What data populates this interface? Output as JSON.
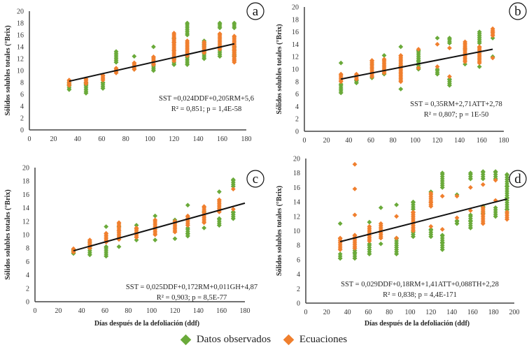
{
  "colors": {
    "observed": "#6aaa3a",
    "equation": "#f07f2e",
    "trend": "#111111",
    "axis": "#444444"
  },
  "legend": [
    {
      "key": "observed",
      "label": "Datos observados"
    },
    {
      "key": "equation",
      "label": "Ecuaciones"
    }
  ],
  "chart_data": [
    {
      "type": "scatter",
      "panel": "a",
      "ylabel": "Sólidos solubles totales (°Brix)",
      "xlabel": "",
      "xlim": [
        0,
        180
      ],
      "xticks": [
        0,
        20,
        40,
        60,
        80,
        100,
        120,
        140,
        160,
        180
      ],
      "ylim": [
        0,
        20
      ],
      "yticks": [
        0,
        2,
        4,
        6,
        8,
        10,
        12,
        14,
        16,
        18,
        20
      ],
      "equation": "SST =0,024DDF+0,205RM+5,6",
      "stats": "R² = 0,851; p = 1,4E-58",
      "trendline": {
        "x": [
          33,
          170
        ],
        "y": [
          8.2,
          14.5
        ]
      },
      "groups": [
        {
          "x": 33,
          "observed": [
            6.8,
            7.6,
            8.0
          ],
          "equation": [
            7.5,
            8.4
          ]
        },
        {
          "x": 47,
          "observed": [
            6.2,
            7.6,
            8.0
          ],
          "equation": [
            7.8,
            8.6
          ]
        },
        {
          "x": 61,
          "observed": [
            7.0,
            8.0
          ],
          "equation": [
            8.4,
            9.2
          ]
        },
        {
          "x": 72,
          "observed": [
            11.4,
            13.2
          ],
          "equation": [
            9.6,
            10.4
          ]
        },
        {
          "x": 87,
          "observed": [
            10.2,
            12.4
          ],
          "equation": [
            10.2,
            11.3
          ]
        },
        {
          "x": 103,
          "observed": [
            10.0,
            11.0,
            14.0
          ],
          "equation": [
            11.0,
            12.3
          ]
        },
        {
          "x": 120,
          "observed": [
            11.0,
            12.0,
            15.4
          ],
          "equation": [
            11.6,
            13.4,
            14.8,
            16.3
          ]
        },
        {
          "x": 131,
          "observed": [
            11.0,
            12.4,
            16.0,
            18.0
          ],
          "equation": [
            12.5,
            15.0
          ]
        },
        {
          "x": 145,
          "observed": [
            12.0,
            13.2,
            15.0
          ],
          "equation": [
            13.0,
            14.8
          ]
        },
        {
          "x": 158,
          "observed": [
            12.4,
            13.6,
            17.2,
            18.0
          ],
          "equation": [
            13.6,
            16.2
          ]
        },
        {
          "x": 170,
          "observed": [
            12.4,
            14.0,
            17.2,
            18.0
          ],
          "equation": [
            11.4,
            11.8,
            13.4,
            15.8
          ]
        }
      ]
    },
    {
      "type": "scatter",
      "panel": "b",
      "ylabel": "Sólidos solubles totales (°Brix)",
      "xlabel": "",
      "xlim": [
        0,
        180
      ],
      "xticks": [
        0,
        20,
        40,
        60,
        80,
        100,
        120,
        140,
        160,
        180
      ],
      "ylim": [
        0,
        20
      ],
      "yticks": [
        0,
        2,
        4,
        6,
        8,
        10,
        12,
        14,
        16,
        18,
        20
      ],
      "equation": "SST = 0,35RM+2,71ATT+2,78",
      "stats": "R² = 0,807; p = 1E-50",
      "trendline": {
        "x": [
          33,
          170
        ],
        "y": [
          8.4,
          13.2
        ]
      },
      "groups": [
        {
          "x": 33,
          "observed": [
            6.2,
            6.8,
            7.6,
            11.0
          ],
          "equation": [
            8.0,
            9.2
          ]
        },
        {
          "x": 47,
          "observed": [
            7.8,
            8.2
          ],
          "equation": [
            8.4,
            9.2
          ]
        },
        {
          "x": 61,
          "observed": [
            8.6,
            10.8
          ],
          "equation": [
            8.8,
            11.4
          ]
        },
        {
          "x": 72,
          "observed": [
            9.2,
            12.2
          ],
          "equation": [
            9.4,
            11.6
          ]
        },
        {
          "x": 87,
          "observed": [
            6.8,
            10.6,
            13.6
          ],
          "equation": [
            8.0,
            10.4,
            12.2
          ]
        },
        {
          "x": 103,
          "observed": [
            10.0,
            11.4,
            13.0
          ],
          "equation": [
            10.2,
            13.2
          ]
        },
        {
          "x": 120,
          "observed": [
            9.2,
            10.0,
            15.0
          ],
          "equation": [
            10.4,
            14.0
          ]
        },
        {
          "x": 131,
          "observed": [
            7.4,
            8.4,
            14.2,
            15.0
          ],
          "equation": [
            8.8,
            13.4
          ]
        },
        {
          "x": 145,
          "observed": [
            10.8,
            13.2
          ],
          "equation": [
            11.2,
            13.4,
            14.4
          ]
        },
        {
          "x": 158,
          "observed": [
            10.4,
            14.2,
            16.0
          ],
          "equation": [
            11.0,
            13.6
          ]
        },
        {
          "x": 170,
          "observed": [
            12.0,
            15.0
          ],
          "equation": [
            11.8,
            15.4,
            16.0,
            16.5
          ]
        }
      ]
    },
    {
      "type": "scatter",
      "panel": "c",
      "ylabel": "Sólidos solubles totales (°Brix)",
      "xlabel": "Días después de la defoliación (ddf)",
      "xlim": [
        0,
        180
      ],
      "xticks": [
        0,
        20,
        40,
        60,
        80,
        100,
        120,
        140,
        160,
        180
      ],
      "ylim": [
        0,
        20
      ],
      "yticks": [
        0,
        2,
        4,
        6,
        8,
        10,
        12,
        14,
        16,
        18,
        20
      ],
      "equation": "SST = 0,025DDF+0,172RM+0,011GH+4,87",
      "stats": "R² = 0,903; p = 8,5E-77",
      "trendline": {
        "x": [
          33,
          180
        ],
        "y": [
          7.6,
          14.7
        ]
      },
      "groups": [
        {
          "x": 33,
          "observed": [
            7.2,
            7.8
          ],
          "equation": [
            7.4,
            7.9
          ]
        },
        {
          "x": 47,
          "observed": [
            7.0,
            8.8
          ],
          "equation": [
            8.0,
            9.2
          ]
        },
        {
          "x": 61,
          "observed": [
            6.8,
            8.2,
            11.2
          ],
          "equation": [
            8.9,
            10.2
          ]
        },
        {
          "x": 72,
          "observed": [
            8.2,
            11.2
          ],
          "equation": [
            9.3,
            10.6,
            11.8
          ]
        },
        {
          "x": 87,
          "observed": [
            9.2,
            11.4
          ],
          "equation": [
            9.6,
            11.0
          ]
        },
        {
          "x": 103,
          "observed": [
            9.2,
            12.8
          ],
          "equation": [
            10.0,
            12.2
          ]
        },
        {
          "x": 120,
          "observed": [
            9.4,
            12.2
          ],
          "equation": [
            10.4,
            12.0
          ]
        },
        {
          "x": 131,
          "observed": [
            9.8,
            10.2,
            11.0,
            14.4
          ],
          "equation": [
            11.4,
            12.8
          ]
        },
        {
          "x": 145,
          "observed": [
            11.0,
            13.4
          ],
          "equation": [
            11.8,
            14.2
          ]
        },
        {
          "x": 158,
          "observed": [
            11.4,
            12.4,
            16.4
          ],
          "equation": [
            13.4,
            15.2
          ]
        },
        {
          "x": 170,
          "observed": [
            12.4,
            13.4,
            17.2,
            18.2
          ],
          "equation": [
            13.8,
            16.8
          ]
        }
      ]
    },
    {
      "type": "scatter",
      "panel": "d",
      "ylabel": "Sólidos solubles totales (°Brix)",
      "xlabel": "Días después de la defoliación (ddf)",
      "xlim": [
        0,
        200
      ],
      "xticks": [
        0,
        20,
        40,
        60,
        80,
        100,
        120,
        140,
        160,
        180,
        200
      ],
      "ylim": [
        0,
        20
      ],
      "yticks": [
        0,
        2,
        4,
        6,
        8,
        10,
        12,
        14,
        16,
        18,
        20
      ],
      "equation": "SST = 0,029DDF+0,18RM+1,41ATT+0,088TH+2,28",
      "stats": "R² = 0,838; p = 4,4E-171",
      "trendline": {
        "x": [
          33,
          193
        ],
        "y": [
          8.5,
          14.4
        ]
      },
      "groups": [
        {
          "x": 33,
          "observed": [
            6.2,
            6.8,
            11.0
          ],
          "equation": [
            7.4,
            9.0
          ]
        },
        {
          "x": 47,
          "observed": [
            6.2,
            7.0,
            7.6
          ],
          "equation": [
            7.6,
            9.4,
            12.2,
            15.8,
            19.2
          ]
        },
        {
          "x": 61,
          "observed": [
            6.8,
            8.2,
            11.2
          ],
          "equation": [
            8.6,
            10.6
          ]
        },
        {
          "x": 72,
          "observed": [
            8.2,
            13.2
          ],
          "equation": [
            9.0,
            11.0
          ]
        },
        {
          "x": 87,
          "observed": [
            6.8,
            9.0,
            13.6
          ],
          "equation": [
            9.0,
            12.0
          ]
        },
        {
          "x": 103,
          "observed": [
            9.2,
            10.0,
            13.0,
            14.0
          ],
          "equation": [
            10.0,
            12.6
          ]
        },
        {
          "x": 120,
          "observed": [
            9.2,
            10.2,
            15.4
          ],
          "equation": [
            10.6,
            13.4,
            14.0,
            15.2
          ]
        },
        {
          "x": 131,
          "observed": [
            7.4,
            8.4,
            9.4,
            16.0,
            18.0
          ],
          "equation": [
            10.2,
            14.8
          ]
        },
        {
          "x": 145,
          "observed": [
            11.0,
            11.4,
            15.0
          ],
          "equation": [
            11.8,
            14.8
          ]
        },
        {
          "x": 158,
          "observed": [
            10.4,
            11.4,
            12.2,
            17.2,
            18.0
          ],
          "equation": [
            12.8,
            16.0
          ]
        },
        {
          "x": 170,
          "observed": [
            12.4,
            13.4,
            17.2,
            18.2
          ],
          "equation": [
            11.0,
            13.2,
            16.4
          ]
        },
        {
          "x": 182,
          "observed": [
            12.0,
            13.2,
            17.2,
            18.2
          ],
          "equation": [
            14.2,
            17.0
          ]
        },
        {
          "x": 193,
          "observed": [
            12.6,
            13.0,
            14.6,
            16.2,
            17.8
          ],
          "equation": [
            11.6,
            12.6
          ]
        }
      ]
    }
  ]
}
